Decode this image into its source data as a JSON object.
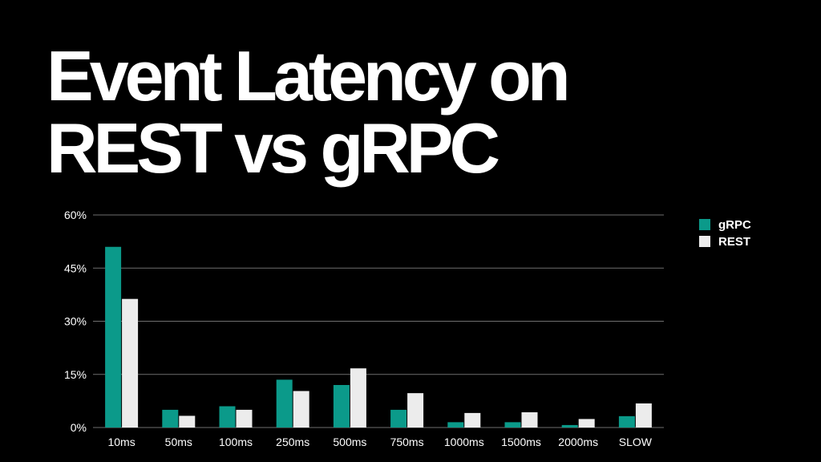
{
  "slide": {
    "title_line1": "Event Latency on",
    "title_line2": "REST vs gRPC"
  },
  "colors": {
    "background": "#000000",
    "grpc": "#0b9a8a",
    "rest": "#ececec",
    "grid": "#6e6e6e",
    "text": "#ffffff"
  },
  "chart_data": {
    "type": "bar",
    "title": "",
    "xlabel": "",
    "ylabel": "",
    "categories": [
      "10ms",
      "50ms",
      "100ms",
      "250ms",
      "500ms",
      "750ms",
      "1000ms",
      "1500ms",
      "2000ms",
      "SLOW"
    ],
    "series": [
      {
        "name": "gRPC",
        "values": [
          51,
          5,
          6,
          13.5,
          12,
          5,
          1.5,
          1.5,
          0.7,
          3.2
        ]
      },
      {
        "name": "REST",
        "values": [
          36.3,
          3.3,
          5,
          10.3,
          16.7,
          9.7,
          4.1,
          4.3,
          2.4,
          6.8
        ]
      }
    ],
    "ylim": [
      0,
      60
    ],
    "yticks": [
      0,
      15,
      30,
      45,
      60
    ],
    "ytick_labels": [
      "0%",
      "15%",
      "30%",
      "45%",
      "60%"
    ],
    "grid": true,
    "legend_position": "right"
  }
}
